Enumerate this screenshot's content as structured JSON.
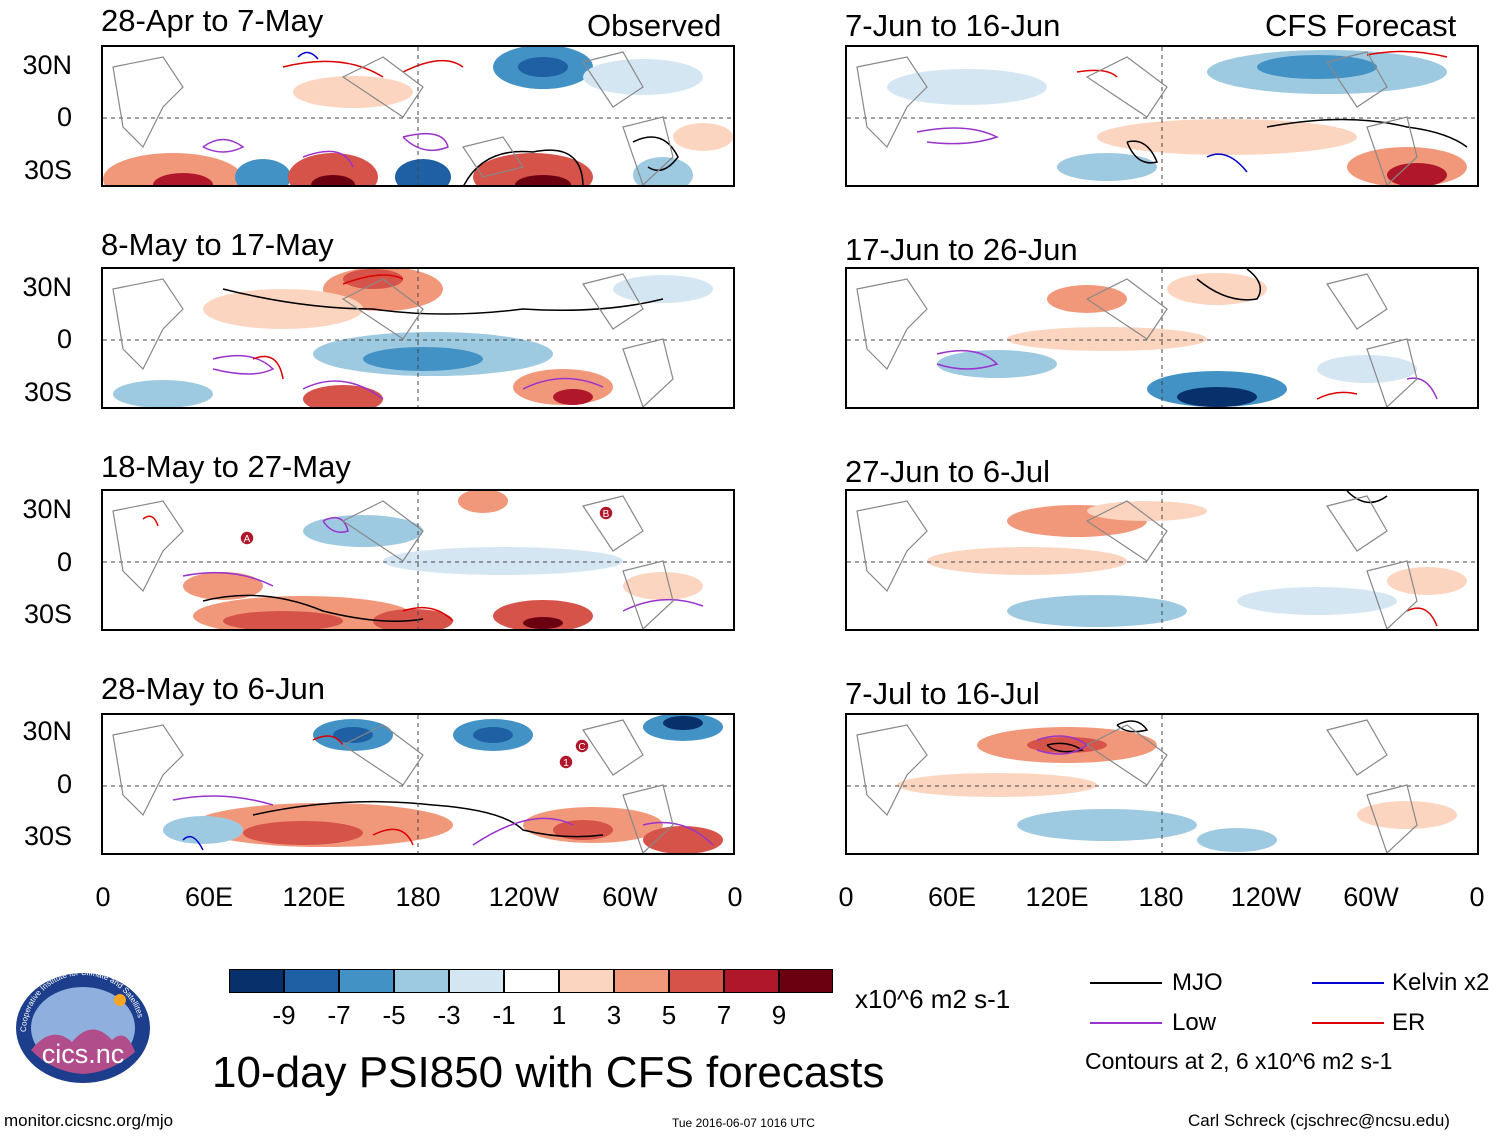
{
  "headers": {
    "observed": "Observed",
    "forecast": "CFS Forecast"
  },
  "observed_panels": [
    {
      "title": "28-Apr to 7-May"
    },
    {
      "title": "8-May to 17-May"
    },
    {
      "title": "18-May to 27-May"
    },
    {
      "title": "28-May to 6-Jun"
    }
  ],
  "forecast_panels": [
    {
      "title": "7-Jun to 16-Jun"
    },
    {
      "title": "17-Jun to 26-Jun"
    },
    {
      "title": "27-Jun to 6-Jul"
    },
    {
      "title": "7-Jul to 16-Jul"
    }
  ],
  "y_ticks": [
    "30N",
    "0",
    "30S"
  ],
  "x_ticks": [
    "0",
    "60E",
    "120E",
    "180",
    "120W",
    "60W",
    "0"
  ],
  "colorbar": {
    "labels": [
      "-9",
      "-7",
      "-5",
      "-3",
      "-1",
      "1",
      "3",
      "5",
      "7",
      "9"
    ],
    "colors": [
      "#08306b",
      "#1f60a5",
      "#4292c6",
      "#9ecae1",
      "#d5e6f3",
      "#ffffff",
      "#fcd5c0",
      "#f2987a",
      "#d6534a",
      "#b0172a",
      "#6b0011"
    ],
    "units": "x10^6 m2 s-1"
  },
  "legend": {
    "items": [
      {
        "label": "MJO",
        "color": "#000000"
      },
      {
        "label": "Kelvin x2",
        "color": "#0000cc"
      },
      {
        "label": "Low",
        "color": "#9933cc"
      },
      {
        "label": "ER",
        "color": "#dd0000"
      }
    ],
    "note": "Contours at 2, 6 x10^6 m2 s-1"
  },
  "storm_markers": {
    "panel3": [
      "A",
      "B"
    ],
    "panel4": [
      "1",
      "C"
    ]
  },
  "main_title": "10-day PSI850 with CFS forecasts",
  "logo_text": "cics.nc",
  "logo_ring_text": "Cooperative Institute for Climate and Satellites",
  "footer": {
    "url": "monitor.cicsnc.org/mjo",
    "timestamp": "Tue 2016-06-07 1016 UTC",
    "credit": "Carl Schreck (cjschrec@ncsu.edu)"
  }
}
